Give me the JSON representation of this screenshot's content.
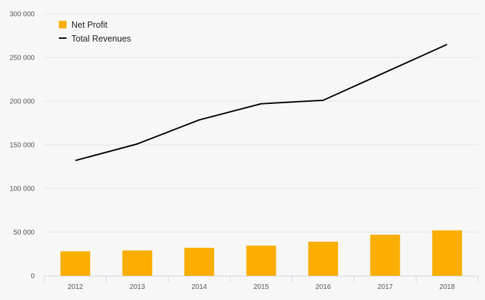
{
  "chart_data": {
    "type": "bar",
    "categories": [
      "2012",
      "2013",
      "2014",
      "2015",
      "2016",
      "2017",
      "2018"
    ],
    "series": [
      {
        "name": "Net Profit",
        "type": "bar",
        "color": "#f9ae00",
        "values": [
          28000,
          29000,
          32000,
          34500,
          39000,
          47000,
          52000
        ]
      },
      {
        "name": "Total Revenues",
        "type": "line",
        "color": "#000000",
        "values": [
          132000,
          151000,
          178500,
          197000,
          201000,
          233000,
          265000
        ]
      }
    ],
    "ylim": [
      0,
      300000
    ],
    "yticks": [
      "0",
      "50 000",
      "100 000",
      "150 000",
      "200 000",
      "250 000",
      "300 000"
    ],
    "grid": true,
    "legend_position": "top-left"
  }
}
